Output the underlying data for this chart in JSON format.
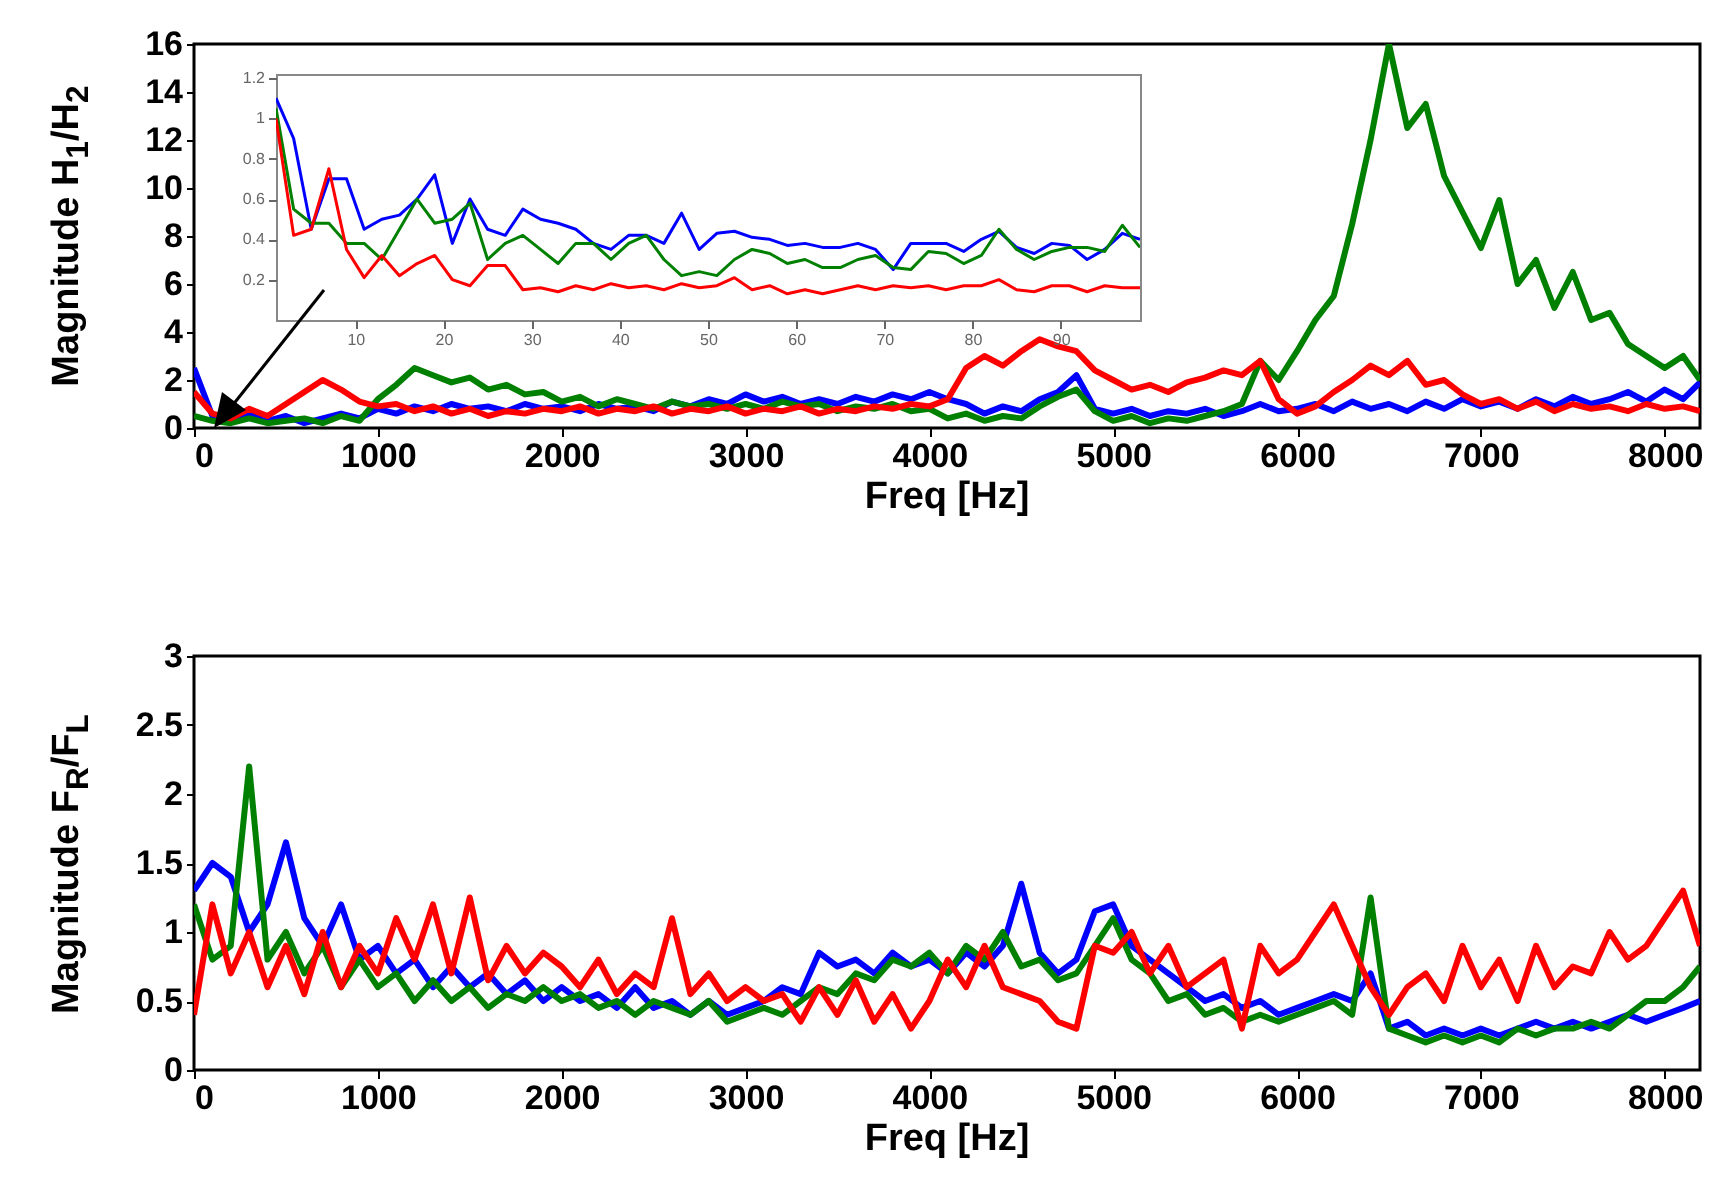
{
  "chart_data": [
    {
      "type": "line",
      "xlabel": "Freq [Hz]",
      "ylabel": "Magnitude H$_{1}$/H$_{2}$",
      "xlim": [
        0,
        8192
      ],
      "xticks": [
        0,
        1000,
        2000,
        3000,
        4000,
        5000,
        6000,
        7000,
        8000
      ],
      "ylim": [
        0,
        16
      ],
      "yticks": [
        0,
        2,
        4,
        6,
        8,
        10,
        12,
        14,
        16
      ],
      "x": [
        0,
        100,
        200,
        300,
        400,
        500,
        600,
        700,
        800,
        900,
        1000,
        1100,
        1200,
        1300,
        1400,
        1500,
        1600,
        1700,
        1800,
        1900,
        2000,
        2100,
        2200,
        2300,
        2400,
        2500,
        2600,
        2700,
        2800,
        2900,
        3000,
        3100,
        3200,
        3300,
        3400,
        3500,
        3600,
        3700,
        3800,
        3900,
        4000,
        4100,
        4200,
        4300,
        4400,
        4500,
        4600,
        4700,
        4800,
        4900,
        5000,
        5100,
        5200,
        5300,
        5400,
        5500,
        5600,
        5700,
        5800,
        5900,
        6000,
        6100,
        6200,
        6300,
        6400,
        6500,
        6600,
        6700,
        6800,
        6900,
        7000,
        7100,
        7200,
        7300,
        7400,
        7500,
        7600,
        7700,
        7800,
        7900,
        8000,
        8100,
        8192
      ],
      "series": [
        {
          "color": "#0000ff",
          "values": [
            2.5,
            0.5,
            0.3,
            0.6,
            0.3,
            0.5,
            0.2,
            0.4,
            0.6,
            0.4,
            0.8,
            0.6,
            0.9,
            0.7,
            1.0,
            0.8,
            0.9,
            0.7,
            1.0,
            0.8,
            0.9,
            0.7,
            1.0,
            0.8,
            0.9,
            0.7,
            1.1,
            0.9,
            1.2,
            1.0,
            1.4,
            1.1,
            1.3,
            1.0,
            1.2,
            1.0,
            1.3,
            1.1,
            1.4,
            1.2,
            1.5,
            1.2,
            1.0,
            0.6,
            0.9,
            0.7,
            1.2,
            1.5,
            2.2,
            0.8,
            0.6,
            0.8,
            0.5,
            0.7,
            0.6,
            0.8,
            0.5,
            0.7,
            1.0,
            0.7,
            0.8,
            1.0,
            0.7,
            1.1,
            0.8,
            1.0,
            0.7,
            1.1,
            0.8,
            1.2,
            0.9,
            1.1,
            0.8,
            1.2,
            0.9,
            1.3,
            1.0,
            1.2,
            1.5,
            1.1,
            1.6,
            1.2,
            1.9
          ]
        },
        {
          "color": "#008000",
          "values": [
            0.5,
            0.3,
            0.2,
            0.4,
            0.2,
            0.3,
            0.4,
            0.2,
            0.5,
            0.3,
            1.2,
            1.8,
            2.5,
            2.2,
            1.9,
            2.1,
            1.6,
            1.8,
            1.4,
            1.5,
            1.1,
            1.3,
            0.9,
            1.2,
            1.0,
            0.8,
            1.1,
            0.9,
            1.0,
            0.8,
            1.0,
            0.8,
            1.1,
            0.9,
            1.0,
            0.7,
            0.9,
            0.8,
            1.0,
            0.7,
            0.8,
            0.4,
            0.6,
            0.3,
            0.5,
            0.4,
            0.9,
            1.3,
            1.6,
            0.7,
            0.3,
            0.5,
            0.2,
            0.4,
            0.3,
            0.5,
            0.7,
            1.0,
            2.8,
            2.0,
            3.2,
            4.5,
            5.5,
            8.5,
            12.0,
            16.0,
            12.5,
            13.5,
            10.5,
            9.0,
            7.5,
            9.5,
            6.0,
            7.0,
            5.0,
            6.5,
            4.5,
            4.8,
            3.5,
            3.0,
            2.5,
            3.0,
            2.0
          ]
        },
        {
          "color": "#ff0000",
          "values": [
            1.5,
            0.6,
            0.4,
            0.8,
            0.5,
            1.0,
            1.5,
            2.0,
            1.6,
            1.1,
            0.9,
            1.0,
            0.7,
            0.9,
            0.6,
            0.8,
            0.5,
            0.7,
            0.6,
            0.8,
            0.7,
            0.9,
            0.6,
            0.8,
            0.7,
            0.9,
            0.6,
            0.8,
            0.7,
            0.9,
            0.6,
            0.8,
            0.7,
            0.9,
            0.6,
            0.8,
            0.7,
            0.9,
            0.8,
            1.0,
            0.9,
            1.2,
            2.5,
            3.0,
            2.6,
            3.2,
            3.7,
            3.4,
            3.2,
            2.4,
            2.0,
            1.6,
            1.8,
            1.5,
            1.9,
            2.1,
            2.4,
            2.2,
            2.8,
            1.2,
            0.6,
            0.9,
            1.5,
            2.0,
            2.6,
            2.2,
            2.8,
            1.8,
            2.0,
            1.4,
            1.0,
            1.2,
            0.8,
            1.1,
            0.7,
            1.0,
            0.8,
            0.9,
            0.7,
            1.0,
            0.8,
            0.9,
            0.7
          ]
        }
      ]
    },
    {
      "type": "line",
      "xlim": [
        1,
        99
      ],
      "xticks": [
        10,
        20,
        30,
        40,
        50,
        60,
        70,
        80,
        90
      ],
      "ylim": [
        0,
        1.22
      ],
      "yticks": [
        0.2,
        0.4,
        0.6,
        0.8,
        1,
        1.2
      ],
      "x": [
        1,
        3,
        5,
        7,
        9,
        11,
        13,
        15,
        17,
        19,
        21,
        23,
        25,
        27,
        29,
        31,
        33,
        35,
        37,
        39,
        41,
        43,
        45,
        47,
        49,
        51,
        53,
        55,
        57,
        59,
        61,
        63,
        65,
        67,
        69,
        71,
        73,
        75,
        77,
        79,
        81,
        83,
        85,
        87,
        89,
        91,
        93,
        95,
        97,
        99
      ],
      "series": [
        {
          "color": "#0000ff",
          "values": [
            1.1,
            0.9,
            0.45,
            0.7,
            0.7,
            0.45,
            0.5,
            0.52,
            0.6,
            0.72,
            0.38,
            0.6,
            0.45,
            0.42,
            0.55,
            0.5,
            0.48,
            0.45,
            0.38,
            0.35,
            0.42,
            0.42,
            0.38,
            0.53,
            0.35,
            0.43,
            0.44,
            0.41,
            0.4,
            0.37,
            0.38,
            0.36,
            0.36,
            0.38,
            0.35,
            0.25,
            0.38,
            0.38,
            0.38,
            0.34,
            0.4,
            0.44,
            0.36,
            0.33,
            0.38,
            0.37,
            0.3,
            0.35,
            0.43,
            0.4
          ]
        },
        {
          "color": "#008000",
          "values": [
            1.05,
            0.55,
            0.48,
            0.48,
            0.38,
            0.38,
            0.3,
            0.45,
            0.6,
            0.48,
            0.5,
            0.58,
            0.3,
            0.38,
            0.42,
            0.35,
            0.28,
            0.38,
            0.38,
            0.3,
            0.38,
            0.42,
            0.3,
            0.22,
            0.24,
            0.22,
            0.3,
            0.35,
            0.33,
            0.28,
            0.3,
            0.26,
            0.26,
            0.3,
            0.32,
            0.26,
            0.25,
            0.34,
            0.33,
            0.28,
            0.32,
            0.45,
            0.35,
            0.3,
            0.34,
            0.36,
            0.36,
            0.34,
            0.47,
            0.36
          ]
        },
        {
          "color": "#ff0000",
          "values": [
            1.0,
            0.42,
            0.45,
            0.75,
            0.35,
            0.21,
            0.32,
            0.22,
            0.28,
            0.32,
            0.2,
            0.17,
            0.27,
            0.27,
            0.15,
            0.16,
            0.14,
            0.17,
            0.15,
            0.18,
            0.16,
            0.17,
            0.15,
            0.18,
            0.16,
            0.17,
            0.21,
            0.15,
            0.17,
            0.13,
            0.15,
            0.13,
            0.15,
            0.17,
            0.15,
            0.17,
            0.16,
            0.17,
            0.15,
            0.17,
            0.17,
            0.2,
            0.15,
            0.14,
            0.17,
            0.17,
            0.14,
            0.17,
            0.16,
            0.16
          ]
        }
      ]
    },
    {
      "type": "line",
      "xlabel": "Freq [Hz]",
      "ylabel": "Magnitude F$_{R}$/F$_{L}$",
      "xlim": [
        0,
        8192
      ],
      "xticks": [
        0,
        1000,
        2000,
        3000,
        4000,
        5000,
        6000,
        7000,
        8000
      ],
      "ylim": [
        0,
        3
      ],
      "yticks": [
        0,
        0.5,
        1,
        1.5,
        2,
        2.5,
        3
      ],
      "x": [
        0,
        100,
        200,
        300,
        400,
        500,
        600,
        700,
        800,
        900,
        1000,
        1100,
        1200,
        1300,
        1400,
        1500,
        1600,
        1700,
        1800,
        1900,
        2000,
        2100,
        2200,
        2300,
        2400,
        2500,
        2600,
        2700,
        2800,
        2900,
        3000,
        3100,
        3200,
        3300,
        3400,
        3500,
        3600,
        3700,
        3800,
        3900,
        4000,
        4100,
        4200,
        4300,
        4400,
        4500,
        4600,
        4700,
        4800,
        4900,
        5000,
        5100,
        5200,
        5300,
        5400,
        5500,
        5600,
        5700,
        5800,
        5900,
        6000,
        6100,
        6200,
        6300,
        6400,
        6500,
        6600,
        6700,
        6800,
        6900,
        7000,
        7100,
        7200,
        7300,
        7400,
        7500,
        7600,
        7700,
        7800,
        7900,
        8000,
        8100,
        8192
      ],
      "series": [
        {
          "color": "#0000ff",
          "values": [
            1.3,
            1.5,
            1.4,
            1.0,
            1.2,
            1.65,
            1.1,
            0.9,
            1.2,
            0.8,
            0.9,
            0.7,
            0.8,
            0.6,
            0.75,
            0.6,
            0.7,
            0.55,
            0.65,
            0.5,
            0.6,
            0.5,
            0.55,
            0.45,
            0.6,
            0.45,
            0.5,
            0.4,
            0.5,
            0.4,
            0.45,
            0.5,
            0.6,
            0.55,
            0.85,
            0.75,
            0.8,
            0.7,
            0.85,
            0.75,
            0.8,
            0.7,
            0.85,
            0.75,
            0.9,
            1.35,
            0.85,
            0.7,
            0.8,
            1.15,
            1.2,
            0.9,
            0.8,
            0.7,
            0.6,
            0.5,
            0.55,
            0.45,
            0.5,
            0.4,
            0.45,
            0.5,
            0.55,
            0.5,
            0.7,
            0.3,
            0.35,
            0.25,
            0.3,
            0.25,
            0.3,
            0.25,
            0.3,
            0.35,
            0.3,
            0.35,
            0.3,
            0.35,
            0.4,
            0.35,
            0.4,
            0.45,
            0.5
          ]
        },
        {
          "color": "#008000",
          "values": [
            1.2,
            0.8,
            0.9,
            2.2,
            0.8,
            1.0,
            0.7,
            0.9,
            0.6,
            0.8,
            0.6,
            0.7,
            0.5,
            0.65,
            0.5,
            0.6,
            0.45,
            0.55,
            0.5,
            0.6,
            0.5,
            0.55,
            0.45,
            0.5,
            0.4,
            0.5,
            0.45,
            0.4,
            0.5,
            0.35,
            0.4,
            0.45,
            0.4,
            0.5,
            0.6,
            0.55,
            0.7,
            0.65,
            0.8,
            0.75,
            0.85,
            0.7,
            0.9,
            0.8,
            1.0,
            0.75,
            0.8,
            0.65,
            0.7,
            0.9,
            1.1,
            0.8,
            0.7,
            0.5,
            0.55,
            0.4,
            0.45,
            0.35,
            0.4,
            0.35,
            0.4,
            0.45,
            0.5,
            0.4,
            1.25,
            0.3,
            0.25,
            0.2,
            0.25,
            0.2,
            0.25,
            0.2,
            0.3,
            0.25,
            0.3,
            0.3,
            0.35,
            0.3,
            0.4,
            0.5,
            0.5,
            0.6,
            0.75
          ]
        },
        {
          "color": "#ff0000",
          "values": [
            0.4,
            1.2,
            0.7,
            1.0,
            0.6,
            0.9,
            0.55,
            1.0,
            0.6,
            0.9,
            0.7,
            1.1,
            0.8,
            1.2,
            0.7,
            1.25,
            0.65,
            0.9,
            0.7,
            0.85,
            0.75,
            0.6,
            0.8,
            0.55,
            0.7,
            0.6,
            1.1,
            0.55,
            0.7,
            0.5,
            0.6,
            0.5,
            0.55,
            0.35,
            0.6,
            0.4,
            0.65,
            0.35,
            0.55,
            0.3,
            0.5,
            0.8,
            0.6,
            0.9,
            0.6,
            0.55,
            0.5,
            0.35,
            0.3,
            0.9,
            0.85,
            1.0,
            0.7,
            0.9,
            0.6,
            0.7,
            0.8,
            0.3,
            0.9,
            0.7,
            0.8,
            1.0,
            1.2,
            0.9,
            0.6,
            0.4,
            0.6,
            0.7,
            0.5,
            0.9,
            0.6,
            0.8,
            0.5,
            0.9,
            0.6,
            0.75,
            0.7,
            1.0,
            0.8,
            0.9,
            1.1,
            1.3,
            0.9
          ]
        }
      ]
    }
  ]
}
